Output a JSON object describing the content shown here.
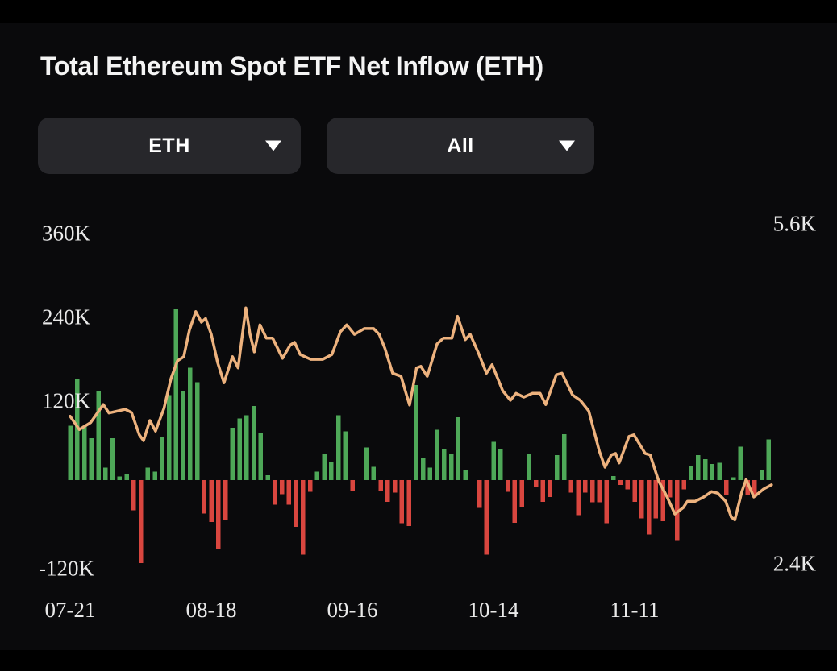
{
  "title": "Total Ethereum Spot ETF Net Inflow (ETH)",
  "filters": {
    "asset_dropdown": {
      "value": "ETH"
    },
    "range_dropdown": {
      "value": "All"
    }
  },
  "chart_data": {
    "type": "bar",
    "subtype": "bar-with-line-overlay",
    "bar_series": {
      "name": "Daily ETH spot ETF net inflow",
      "unit": "thousand ETH",
      "values": [
        78,
        145,
        78,
        60,
        127,
        18,
        60,
        5,
        8,
        -43,
        -119,
        18,
        12,
        61,
        122,
        245,
        128,
        161,
        140,
        -48,
        -60,
        -98,
        -57,
        75,
        88,
        93,
        106,
        67,
        7,
        -35,
        -20,
        -35,
        -67,
        -107,
        -17,
        12,
        38,
        26,
        93,
        70,
        -15,
        0,
        47,
        19,
        -15,
        -31,
        -18,
        -62,
        -66,
        136,
        31,
        18,
        72,
        44,
        38,
        90,
        15,
        0,
        -40,
        -107,
        55,
        44,
        -17,
        -61,
        -38,
        37,
        -9,
        -31,
        -24,
        36,
        66,
        -18,
        -50,
        -18,
        -32,
        -32,
        -62,
        6,
        -7,
        -13,
        -31,
        -55,
        -78,
        -55,
        -59,
        -25,
        -86,
        -13,
        20,
        36,
        30,
        23,
        25,
        -21,
        4,
        48,
        -22,
        -24,
        14,
        58
      ]
    },
    "line_series": {
      "name": "ETH price (right axis)",
      "unit": "USD",
      "points": [
        [
          0,
          3790
        ],
        [
          1.3,
          3665
        ],
        [
          2.9,
          3730
        ],
        [
          4.7,
          3900
        ],
        [
          5.5,
          3820
        ],
        [
          7.8,
          3855
        ],
        [
          8.7,
          3825
        ],
        [
          9.8,
          3615
        ],
        [
          10.4,
          3560
        ],
        [
          11.3,
          3750
        ],
        [
          12.1,
          3650
        ],
        [
          13.3,
          3865
        ],
        [
          14.3,
          4145
        ],
        [
          15.2,
          4310
        ],
        [
          16.1,
          4350
        ],
        [
          16.9,
          4600
        ],
        [
          17.8,
          4775
        ],
        [
          18.6,
          4675
        ],
        [
          19.2,
          4710
        ],
        [
          20,
          4560
        ],
        [
          20.9,
          4295
        ],
        [
          21.8,
          4105
        ],
        [
          23,
          4350
        ],
        [
          23.8,
          4245
        ],
        [
          24.9,
          4810
        ],
        [
          25.5,
          4560
        ],
        [
          26.1,
          4395
        ],
        [
          26.9,
          4650
        ],
        [
          27.8,
          4525
        ],
        [
          28.7,
          4525
        ],
        [
          30.1,
          4335
        ],
        [
          31.2,
          4460
        ],
        [
          31.8,
          4485
        ],
        [
          32.6,
          4370
        ],
        [
          34.1,
          4325
        ],
        [
          35.8,
          4325
        ],
        [
          37.1,
          4370
        ],
        [
          38.3,
          4585
        ],
        [
          39.2,
          4650
        ],
        [
          40.3,
          4560
        ],
        [
          41.7,
          4615
        ],
        [
          43,
          4615
        ],
        [
          43.8,
          4560
        ],
        [
          44.6,
          4430
        ],
        [
          45.7,
          4195
        ],
        [
          46.9,
          4165
        ],
        [
          47.5,
          4030
        ],
        [
          48.1,
          3895
        ],
        [
          49.1,
          4245
        ],
        [
          49.7,
          4260
        ],
        [
          50.6,
          4165
        ],
        [
          52,
          4470
        ],
        [
          52.9,
          4525
        ],
        [
          54.1,
          4525
        ],
        [
          54.9,
          4730
        ],
        [
          56,
          4510
        ],
        [
          56.7,
          4560
        ],
        [
          57.8,
          4395
        ],
        [
          59,
          4195
        ],
        [
          59.8,
          4275
        ],
        [
          61.3,
          4030
        ],
        [
          62.4,
          3940
        ],
        [
          63.2,
          4005
        ],
        [
          64.3,
          3970
        ],
        [
          65.5,
          4005
        ],
        [
          66.6,
          4005
        ],
        [
          67.4,
          3900
        ],
        [
          68.9,
          4180
        ],
        [
          69.7,
          4195
        ],
        [
          71.2,
          3990
        ],
        [
          72.3,
          3940
        ],
        [
          73.5,
          3840
        ],
        [
          75,
          3460
        ],
        [
          75.8,
          3310
        ],
        [
          76.7,
          3425
        ],
        [
          77.3,
          3440
        ],
        [
          77.8,
          3350
        ],
        [
          79.2,
          3600
        ],
        [
          79.9,
          3615
        ],
        [
          81.5,
          3440
        ],
        [
          82.2,
          3425
        ],
        [
          83.4,
          3180
        ],
        [
          84.6,
          3030
        ],
        [
          85.7,
          2870
        ],
        [
          86.9,
          2930
        ],
        [
          87.5,
          2990
        ],
        [
          88.6,
          2990
        ],
        [
          89.8,
          3030
        ],
        [
          90.9,
          3080
        ],
        [
          91.8,
          3065
        ],
        [
          92.9,
          2990
        ],
        [
          93.7,
          2840
        ],
        [
          94.2,
          2815
        ],
        [
          95.2,
          3080
        ],
        [
          95.8,
          3195
        ],
        [
          96.9,
          3030
        ],
        [
          98.3,
          3105
        ],
        [
          99.4,
          3145
        ]
      ]
    },
    "x_ticks": [
      {
        "idx": 0,
        "label": "07-21"
      },
      {
        "idx": 20,
        "label": "08-18"
      },
      {
        "idx": 40,
        "label": "09-16"
      },
      {
        "idx": 60,
        "label": "10-14"
      },
      {
        "idx": 80,
        "label": "11-11"
      }
    ],
    "y_axis_left": {
      "labels": [
        "360K",
        "240K",
        "120K",
        "-120K"
      ],
      "values": [
        360,
        240,
        120,
        -120
      ],
      "unit": "thousand ETH"
    },
    "y_axis_right": {
      "labels": [
        "5.6K",
        "2.4K"
      ],
      "values": [
        5600,
        2400
      ],
      "unit": "USD"
    },
    "ylim_left": [
      -160,
      420
    ],
    "ylim_right": [
      2400,
      5600
    ],
    "grid": "off",
    "legend": "none",
    "colors": {
      "positive": "#4ea858",
      "negative": "#d9463f",
      "line": "#edb27e"
    }
  }
}
